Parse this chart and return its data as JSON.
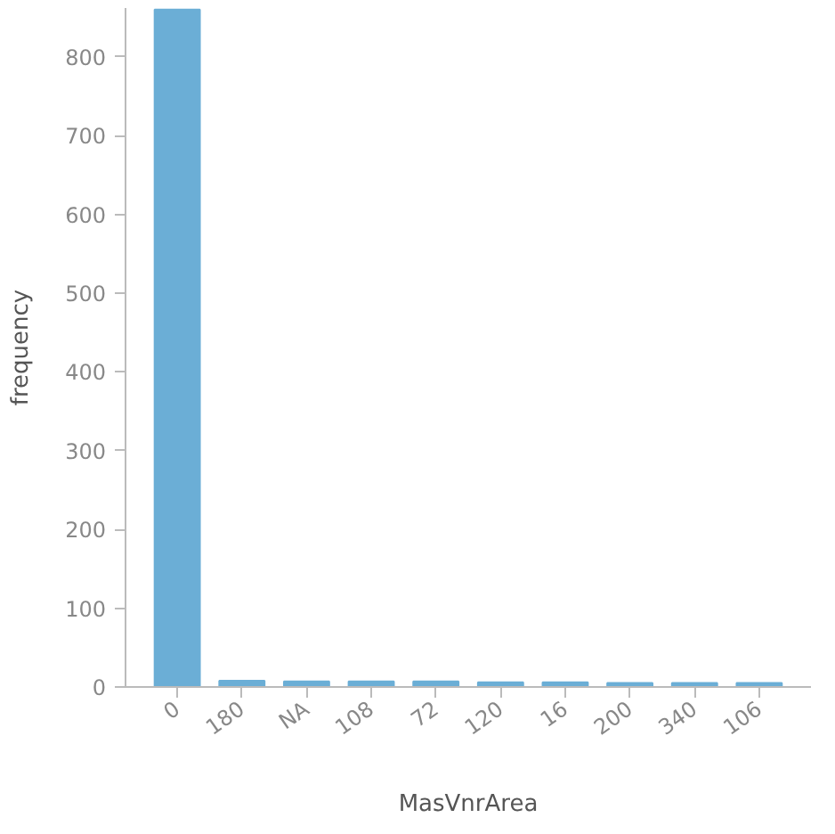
{
  "chart_data": {
    "type": "bar",
    "xlabel": "MasVnrArea",
    "ylabel": "frequency",
    "categories": [
      "0",
      "180",
      "NA",
      "108",
      "72",
      "120",
      "16",
      "200",
      "340",
      "106"
    ],
    "values": [
      860,
      8,
      7,
      7,
      7,
      6,
      6,
      5,
      5,
      5
    ],
    "color": "#6baed6",
    "ylim": [
      0,
      862
    ],
    "yticks": [
      0,
      100,
      200,
      300,
      400,
      500,
      600,
      700,
      800
    ],
    "grid": false
  }
}
